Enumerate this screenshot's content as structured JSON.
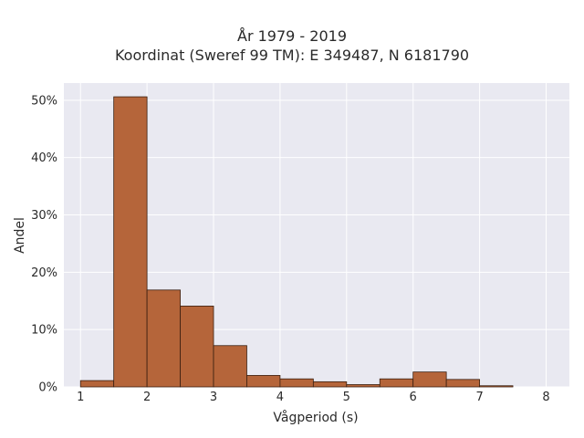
{
  "chart_data": {
    "type": "bar",
    "title": "År 1979 - 2019",
    "subtitle": "Koordinat (Sweref 99 TM): E 349487, N 6181790",
    "xlabel": "Vågperiod (s)",
    "ylabel": "Andel",
    "xlim": [
      0.75,
      8.35
    ],
    "ylim": [
      0,
      53
    ],
    "x_ticks": [
      1,
      2,
      3,
      4,
      5,
      6,
      7,
      8
    ],
    "x_tick_labels": [
      "1",
      "2",
      "3",
      "4",
      "5",
      "6",
      "7",
      "8"
    ],
    "y_ticks": [
      0,
      10,
      20,
      30,
      40,
      50
    ],
    "y_tick_labels": [
      "0%",
      "10%",
      "20%",
      "30%",
      "40%",
      "50%"
    ],
    "bin_width": 0.5,
    "bin_starts": [
      1.0,
      1.5,
      2.0,
      2.5,
      3.0,
      3.5,
      4.0,
      4.5,
      5.0,
      5.5,
      6.0,
      6.5,
      7.0
    ],
    "values": [
      1.1,
      50.6,
      16.9,
      14.1,
      7.2,
      2.0,
      1.4,
      0.9,
      0.4,
      1.4,
      2.6,
      1.3,
      0.2
    ],
    "grid": true,
    "bar_color": "#b5653a",
    "bar_edge_color": "#3a1f10",
    "background_color": "#e9e9f1"
  }
}
